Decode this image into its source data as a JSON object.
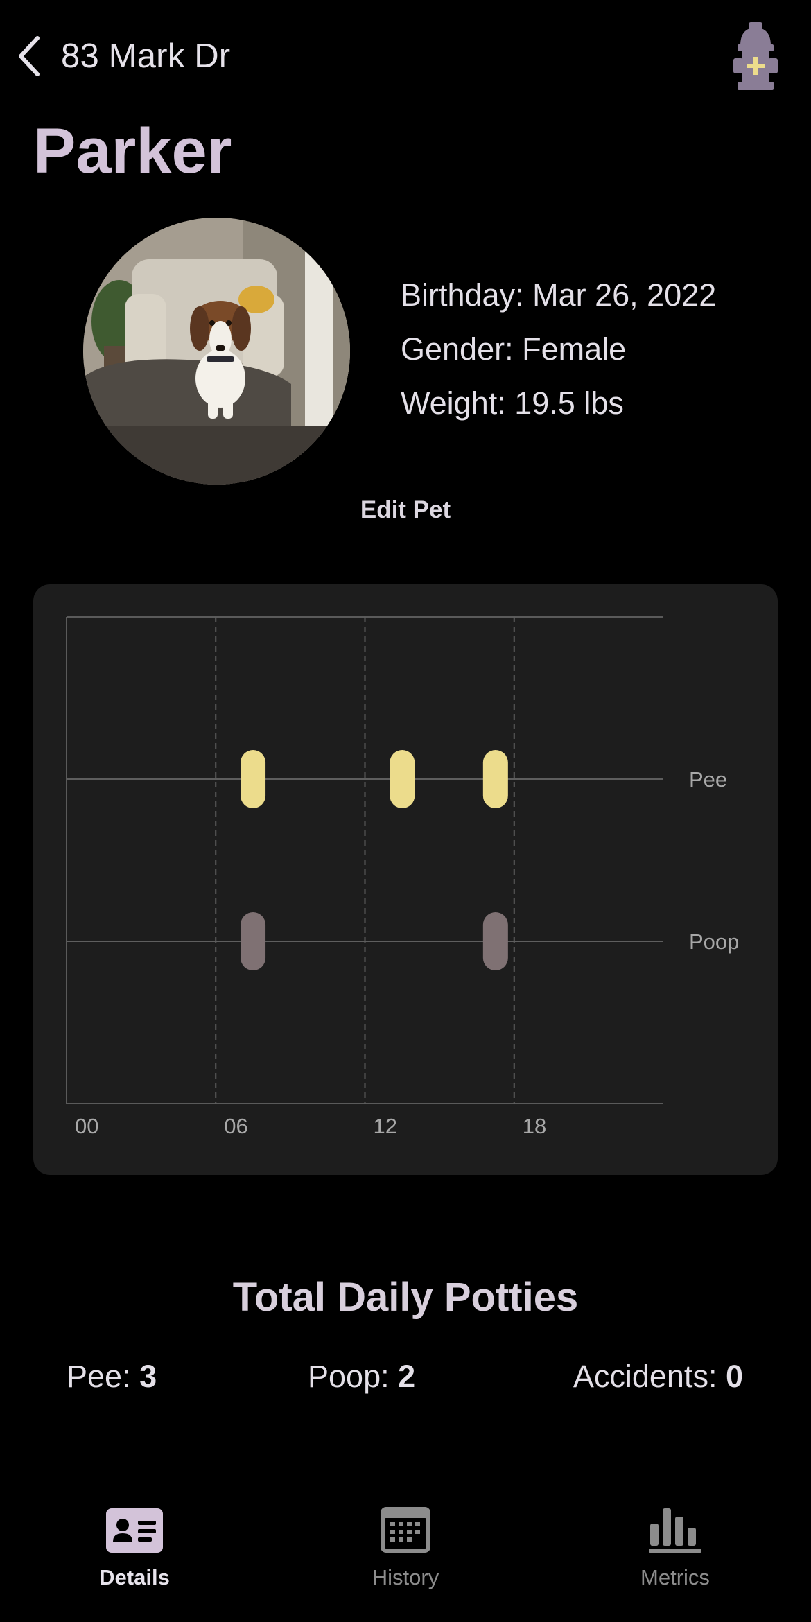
{
  "header": {
    "back_label": "83 Mark Dr",
    "action_icon": "hydrant-add-icon"
  },
  "pet": {
    "name": "Parker",
    "birthday": "Birthday: Mar 26, 2022",
    "gender": "Gender: Female",
    "weight": "Weight: 19.5 lbs",
    "edit_label": "Edit Pet"
  },
  "chart_data": {
    "type": "scatter",
    "x_ticks": [
      "00",
      "06",
      "12",
      "18"
    ],
    "xlim": [
      0,
      24
    ],
    "categories": [
      "Pee",
      "Poop"
    ],
    "grid": true,
    "series": [
      {
        "name": "Pee",
        "color": "#ecdc8c",
        "x": [
          7.5,
          13.5,
          17.25
        ]
      },
      {
        "name": "Poop",
        "color": "#7f7173",
        "x": [
          7.5,
          17.25
        ]
      }
    ]
  },
  "totals": {
    "title": "Total Daily Potties",
    "pee_label": "Pee:",
    "pee_value": "3",
    "poop_label": "Poop:",
    "poop_value": "2",
    "accidents_label": "Accidents:",
    "accidents_value": "0"
  },
  "tabs": [
    {
      "label": "Details",
      "icon": "id-card-icon",
      "active": true
    },
    {
      "label": "History",
      "icon": "calendar-icon",
      "active": false
    },
    {
      "label": "Metrics",
      "icon": "bar-chart-icon",
      "active": false
    }
  ],
  "colors": {
    "accent": "#d3c3d9",
    "pee": "#ecdc8c",
    "poop": "#7f7173",
    "card": "#1d1d1d"
  }
}
